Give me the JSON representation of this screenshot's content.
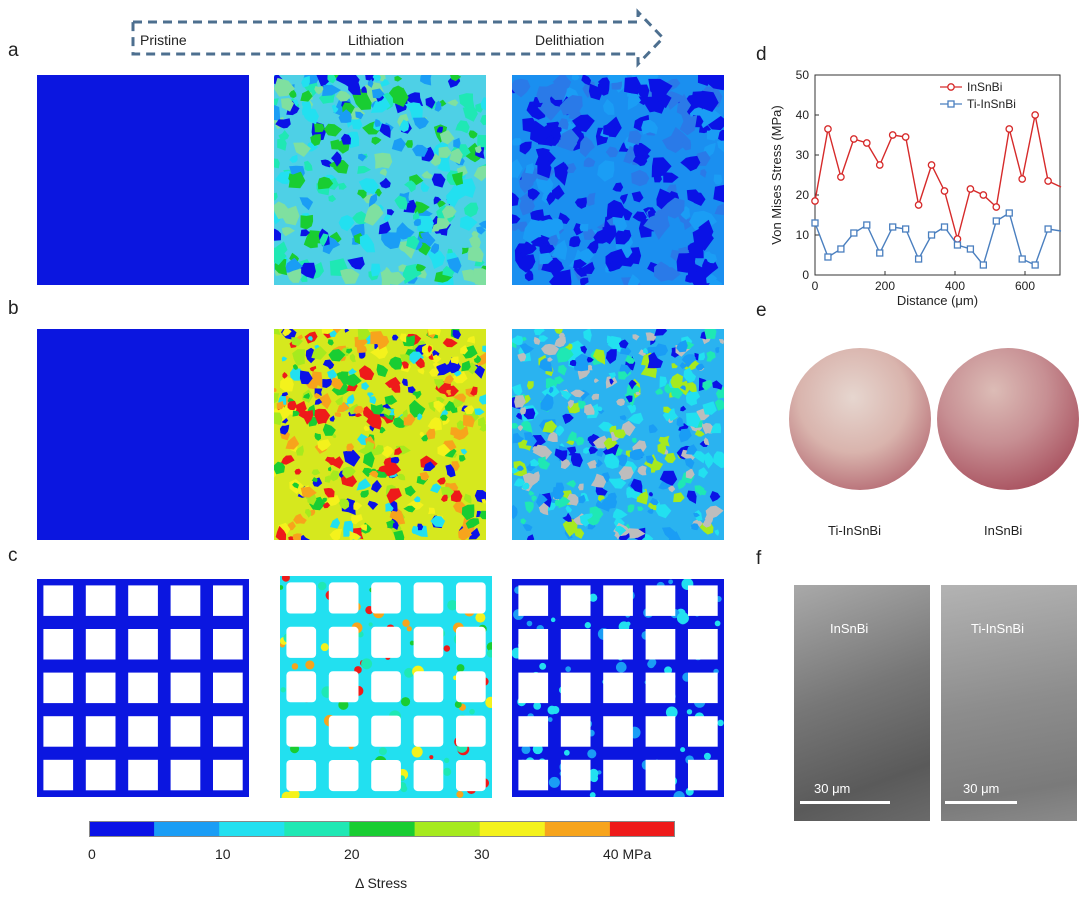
{
  "panels": {
    "a": "a",
    "b": "b",
    "c": "c",
    "d": "d",
    "e": "e",
    "f": "f"
  },
  "stages": [
    "Pristine",
    "Lithiation",
    "Delithiation"
  ],
  "colorbar": {
    "colors": [
      "#0a12e6",
      "#1a9df5",
      "#22e0f0",
      "#1fe8b4",
      "#19cd32",
      "#a6ea1e",
      "#f4f21c",
      "#f7a41c",
      "#ee1a1a"
    ],
    "ticks": [
      "0",
      "10",
      "20",
      "30",
      "40 MPa"
    ],
    "label": "Δ Stress"
  },
  "chart_data": {
    "type": "line",
    "xlabel": "Distance (μm)",
    "ylabel": "Von Mises Stress (MPa)",
    "xlim": [
      0,
      700
    ],
    "ylim": [
      0,
      50
    ],
    "xticks": [
      "0",
      "200",
      "400",
      "600"
    ],
    "yticks": [
      "0",
      "10",
      "20",
      "30",
      "40",
      "50"
    ],
    "series": [
      {
        "name": "InSnBi",
        "color": "#d62a2a",
        "marker": "circle",
        "x": [
          0,
          37,
          74,
          111,
          148,
          185,
          222,
          259,
          296,
          333,
          370,
          407,
          444,
          481,
          518,
          555,
          592,
          629,
          666,
          703
        ],
        "values": [
          18.5,
          36.5,
          24.5,
          34,
          33,
          27.5,
          35,
          34.5,
          17.5,
          27.5,
          21,
          9,
          21.5,
          20,
          17,
          36.5,
          24,
          40,
          23.5,
          22
        ]
      },
      {
        "name": "Ti-InSnBi",
        "color": "#4a7fbf",
        "marker": "square",
        "x": [
          0,
          37,
          74,
          111,
          148,
          185,
          222,
          259,
          296,
          333,
          370,
          407,
          444,
          481,
          518,
          555,
          592,
          629,
          666,
          703
        ],
        "values": [
          13,
          4.5,
          6.5,
          10.5,
          12.5,
          5.5,
          12,
          11.5,
          4,
          10,
          12,
          7.5,
          6.5,
          2.5,
          13.5,
          15.5,
          4,
          2.5,
          11.5,
          11
        ]
      }
    ]
  },
  "photos": {
    "left": "Ti-InSnBi",
    "right": "InSnBi"
  },
  "sem": {
    "left_label": "InSnBi",
    "right_label": "Ti-InSnBi",
    "scale_left": "30 μm",
    "scale_right": "30 μm"
  }
}
